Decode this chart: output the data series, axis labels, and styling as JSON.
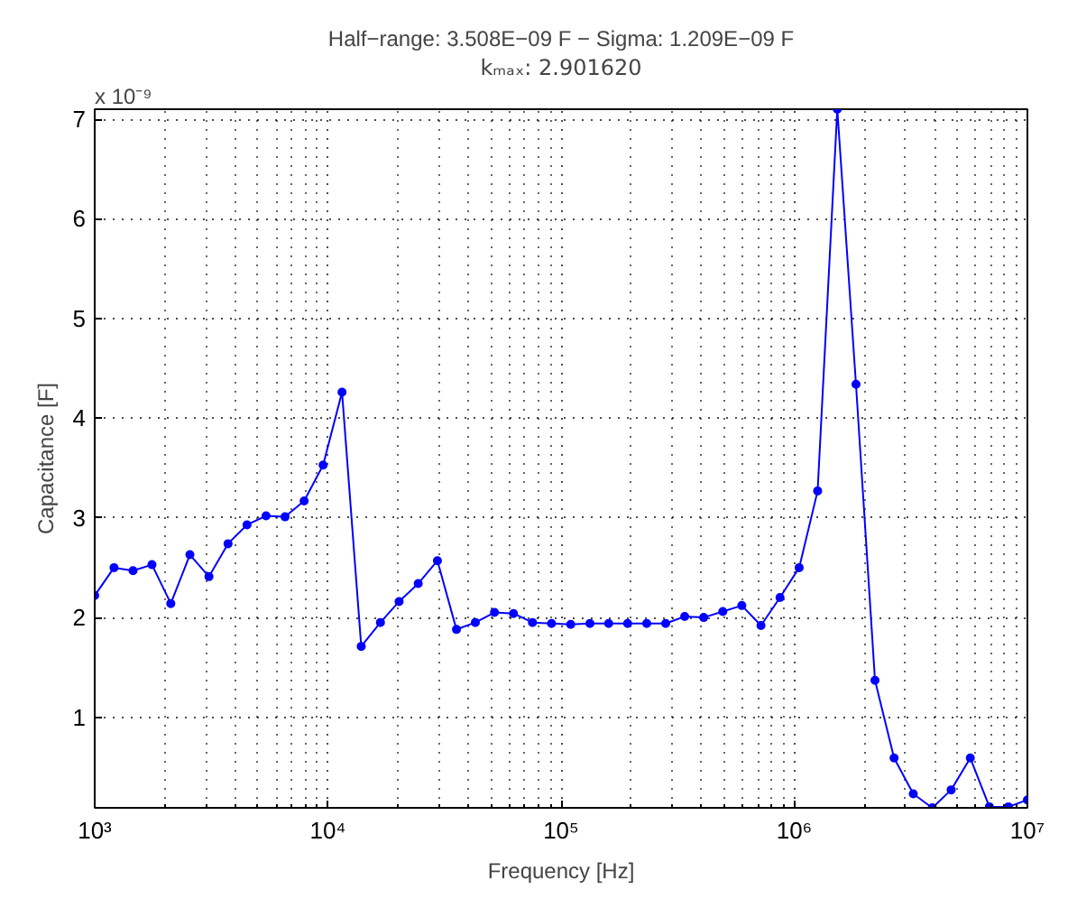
{
  "chart_data": {
    "type": "line",
    "title": "Half−range: 3.508E−09 F − Sigma: 1.209E−09 F",
    "subtitle": "kₘₐₓ: 2.901620",
    "xlabel": "Frequency [Hz]",
    "ylabel": "Capacitance [F]",
    "annotations": [
      "x 10⁻⁹"
    ],
    "log": "x",
    "x": [
      1000,
      1210,
      1460,
      1760,
      2120,
      2560,
      3090,
      3730,
      4500,
      5430,
      6550,
      7910,
      9540,
      11500,
      13900,
      16800,
      20200,
      24400,
      29500,
      35600,
      42900,
      51800,
      62500,
      75400,
      91000,
      110000,
      133000,
      160000,
      193000,
      233000,
      281000,
      339000,
      409000,
      494000,
      596000,
      720000,
      869000,
      1050000,
      1260000,
      1530000,
      1840000,
      2220000,
      2680000,
      3240000,
      3910000,
      4710000,
      5690000,
      6870000,
      8290000,
      10000000
    ],
    "series": [
      {
        "color": "#0000ff",
        "values": [
          2.22,
          2.5,
          2.47,
          2.53,
          2.14,
          2.63,
          2.41,
          2.74,
          2.93,
          3.02,
          3.01,
          3.17,
          3.53,
          4.26,
          1.71,
          1.95,
          2.16,
          2.34,
          2.57,
          1.88,
          1.95,
          2.05,
          2.04,
          1.95,
          1.94,
          1.93,
          1.94,
          1.94,
          1.94,
          1.94,
          1.94,
          2.01,
          2.0,
          2.06,
          2.12,
          1.92,
          2.2,
          2.5,
          3.27,
          7.1,
          4.34,
          1.37,
          0.59,
          0.23,
          0.09,
          0.27,
          0.59,
          0.1,
          0.1,
          0.17
        ]
      }
    ],
    "xlim": [
      1000,
      10000000
    ],
    "ylim": [
      0.09,
      7.1
    ],
    "xticks": [
      {
        "value": 1000,
        "label": "10³"
      },
      {
        "value": 10000,
        "label": "10⁴"
      },
      {
        "value": 100000,
        "label": "10⁵"
      },
      {
        "value": 1000000,
        "label": "10⁶"
      },
      {
        "value": 10000000,
        "label": "10⁷"
      }
    ],
    "yticks": [
      1,
      2,
      3,
      4,
      5,
      6,
      7
    ],
    "grid": true,
    "marker": "circle",
    "line_style": "solid"
  }
}
